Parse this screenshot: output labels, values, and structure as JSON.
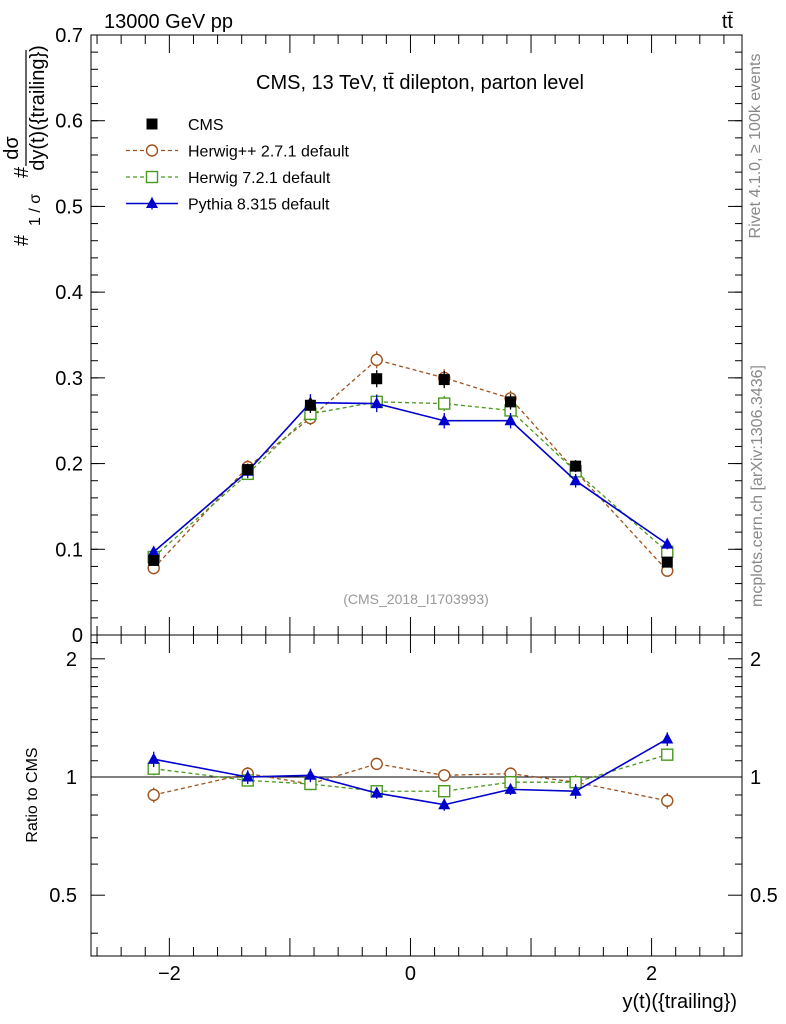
{
  "header": {
    "energy_label": "13000 GeV pp",
    "process_label": "tt̄"
  },
  "side_text": {
    "rivet": "Rivet 4.1.0, ≥ 100k events",
    "mcplots": "mcplots.cern.ch [arXiv:1306.3436]"
  },
  "chart_data": [
    {
      "type": "scatter",
      "title": "CMS, 13 TeV, tt̄ dilepton, parton level",
      "analysis_id": "(CMS_2018_I1703993)",
      "ylabel": "#frac{1}{σ}#frac{dσ}{dy(t)({trailing})}",
      "ylabel_num": "dσ",
      "ylabel_den": "dy(t)({trailing})",
      "ylabel_prefix": "#",
      "ylabel_sigma_frac": "1 / σ",
      "ylim": [
        0,
        0.7
      ],
      "xlim": [
        -2.65,
        2.75
      ],
      "yticks": [
        {
          "value": 0,
          "label": "0"
        },
        {
          "value": 0.1,
          "label": "0.1"
        },
        {
          "value": 0.2,
          "label": "0.2"
        },
        {
          "value": 0.3,
          "label": "0.3"
        },
        {
          "value": 0.4,
          "label": "0.4"
        },
        {
          "value": 0.5,
          "label": "0.5"
        },
        {
          "value": 0.6,
          "label": "0.6"
        },
        {
          "value": 0.7,
          "label": "0.7"
        }
      ],
      "x": [
        -2.13,
        -1.35,
        -0.83,
        -0.28,
        0.28,
        0.83,
        1.37,
        2.13
      ],
      "series": [
        {
          "name": "CMS",
          "style": "data",
          "color": "#000000",
          "marker": "square-filled",
          "values": [
            0.087,
            0.193,
            0.268,
            0.299,
            0.298,
            0.272,
            0.197,
            0.085
          ],
          "errors": [
            0.005,
            0.007,
            0.009,
            0.01,
            0.01,
            0.009,
            0.007,
            0.005
          ]
        },
        {
          "name": "Herwig++ 2.7.1 default",
          "style": "dashed",
          "color": "#a0521d",
          "marker": "circle-open",
          "values": [
            0.078,
            0.196,
            0.253,
            0.321,
            0.3,
            0.276,
            0.191,
            0.075
          ],
          "errors": [
            0.005,
            0.008,
            0.008,
            0.01,
            0.01,
            0.009,
            0.008,
            0.005
          ]
        },
        {
          "name": "Herwig 7.2.1 default",
          "style": "dashed",
          "color": "#4a9a1f",
          "marker": "square-open",
          "values": [
            0.091,
            0.188,
            0.258,
            0.272,
            0.27,
            0.262,
            0.191,
            0.097
          ],
          "errors": [
            0.005,
            0.007,
            0.008,
            0.009,
            0.009,
            0.008,
            0.007,
            0.006
          ]
        },
        {
          "name": "Pythia 8.315 default",
          "style": "solid",
          "color": "#0000cc",
          "marker": "triangle-filled",
          "values": [
            0.097,
            0.191,
            0.271,
            0.27,
            0.25,
            0.25,
            0.18,
            0.106
          ],
          "errors": [
            0.006,
            0.008,
            0.01,
            0.01,
            0.009,
            0.009,
            0.008,
            0.006
          ]
        }
      ]
    },
    {
      "type": "scatter",
      "ylabel": "Ratio to CMS",
      "xlabel": "y(t)({trailing})",
      "ylim": [
        0.35,
        2.3
      ],
      "xlim": [
        -2.65,
        2.75
      ],
      "reference_line": 1,
      "yticks": [
        {
          "value": 0.5,
          "label": "0.5"
        },
        {
          "value": 1,
          "label": "1"
        },
        {
          "value": 2,
          "label": "2"
        }
      ],
      "xticks": [
        {
          "value": -2,
          "label": "−2"
        },
        {
          "value": 0,
          "label": "0"
        },
        {
          "value": 2,
          "label": "2"
        }
      ],
      "x": [
        -2.13,
        -1.35,
        -0.83,
        -0.28,
        0.28,
        0.83,
        1.37,
        2.13
      ],
      "series": [
        {
          "name": "Herwig++ 2.7.1 default",
          "style": "dashed",
          "color": "#a0521d",
          "marker": "circle-open",
          "values": [
            0.9,
            1.02,
            0.96,
            1.08,
            1.01,
            1.02,
            0.97,
            0.87
          ],
          "errors": [
            0.04,
            0.04,
            0.03,
            0.03,
            0.03,
            0.03,
            0.04,
            0.04
          ]
        },
        {
          "name": "Herwig 7.2.1 default",
          "style": "dashed",
          "color": "#4a9a1f",
          "marker": "square-open",
          "values": [
            1.05,
            0.98,
            0.96,
            0.92,
            0.92,
            0.97,
            0.97,
            1.14
          ],
          "errors": [
            0.04,
            0.03,
            0.03,
            0.03,
            0.03,
            0.03,
            0.04,
            0.04
          ]
        },
        {
          "name": "Pythia 8.315 default",
          "style": "solid",
          "color": "#0000cc",
          "marker": "triangle-filled",
          "values": [
            1.11,
            1.0,
            1.01,
            0.91,
            0.85,
            0.93,
            0.92,
            1.25
          ],
          "errors": [
            0.05,
            0.04,
            0.04,
            0.03,
            0.03,
            0.03,
            0.04,
            0.05
          ]
        }
      ]
    }
  ]
}
